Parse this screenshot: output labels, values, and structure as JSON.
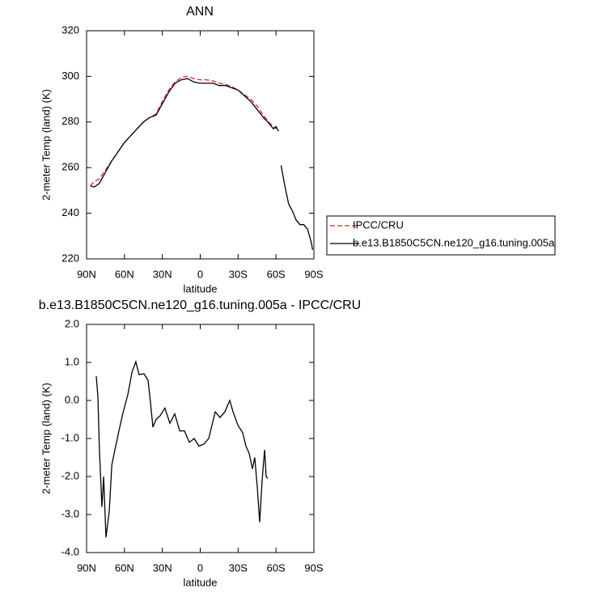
{
  "chart_data": [
    {
      "type": "line",
      "title": "ANN",
      "x_label": "latitude",
      "y_label": "2-meter Temp (land) (K)",
      "x": [
        87,
        84,
        80,
        75,
        70,
        65,
        60,
        55,
        50,
        45,
        40,
        35,
        30,
        25,
        20,
        15,
        10,
        5,
        0,
        -5,
        -10,
        -15,
        -20,
        -25,
        -30,
        -35,
        -40,
        -45,
        -50,
        -55,
        -58,
        -60,
        -62,
        -63,
        -64,
        -67,
        -70,
        -73,
        -76,
        -79,
        -82,
        -85,
        -88,
        -89
      ],
      "series": [
        {
          "name": "IPCC/CRU",
          "color": "#e8212b",
          "dashed": true,
          "values": [
            252,
            254,
            255,
            259,
            263,
            267,
            271,
            274,
            277,
            280,
            282,
            283.5,
            289,
            294,
            297.5,
            299.5,
            300,
            299,
            298.5,
            298.5,
            298,
            297,
            296.5,
            295.5,
            294,
            292,
            290,
            287,
            283,
            279.5,
            278,
            277,
            null,
            null,
            null,
            null,
            null,
            null,
            null,
            null,
            null,
            null,
            null,
            null
          ]
        },
        {
          "name": "b.e13.B1850C5CN.ne120_g16.tuning.005a",
          "color": "#000000",
          "dashed": false,
          "values": [
            252,
            251.5,
            253,
            258,
            263,
            267,
            271,
            274,
            277,
            280,
            282,
            283,
            288,
            293,
            297,
            298.5,
            299,
            297.5,
            297,
            297,
            297,
            296,
            296,
            295,
            294,
            291.5,
            289,
            285.5,
            282,
            279,
            277,
            278,
            276,
            null,
            261,
            252,
            244,
            241,
            237,
            235,
            235,
            233,
            227,
            224
          ]
        }
      ],
      "xlim": [
        90,
        -90
      ],
      "xticks": [
        {
          "value": 90,
          "label": "90N"
        },
        {
          "value": 60,
          "label": "60N"
        },
        {
          "value": 30,
          "label": "30N"
        },
        0,
        {
          "value": -30,
          "label": "30S"
        },
        {
          "value": -60,
          "label": "60S"
        },
        {
          "value": -90,
          "label": "90S"
        }
      ],
      "ylim": [
        220,
        320
      ],
      "yticks": [
        220,
        240,
        260,
        280,
        300,
        320
      ]
    },
    {
      "type": "line",
      "title": "b.e13.B1850C5CN.ne120_g16.tuning.005a - IPCC/CRU",
      "x_label": "latitude",
      "y_label": "2-meter Temp (land) (K)",
      "x": [
        82.3,
        81,
        79.8,
        77.8,
        76.5,
        74.6,
        72,
        70,
        67.6,
        64.4,
        61,
        57.3,
        54,
        51,
        48.4,
        44.5,
        41.3,
        39.4,
        37.5,
        35,
        31.7,
        28,
        24,
        20.2,
        16.3,
        12.5,
        8.6,
        4.8,
        1,
        -2.9,
        -6.7,
        -9.3,
        -11.9,
        -15.7,
        -19.5,
        -23.4,
        -26,
        -29.8,
        -33.6,
        -36.2,
        -38.8,
        -41.3,
        -43.2,
        -45.2,
        -47.1,
        -49,
        -51,
        -52.2,
        -53.5
      ],
      "values": [
        0.64,
        0.1,
        -1.3,
        -2.8,
        -2.0,
        -3.6,
        -2.9,
        -1.7,
        -1.3,
        -0.8,
        -0.3,
        0.15,
        0.75,
        1.02,
        0.68,
        0.7,
        0.53,
        -0.05,
        -0.7,
        -0.5,
        -0.4,
        -0.2,
        -0.6,
        -0.35,
        -0.8,
        -0.8,
        -1.1,
        -1.0,
        -1.2,
        -1.15,
        -1.0,
        -0.65,
        -0.3,
        -0.45,
        -0.3,
        0,
        -0.3,
        -0.65,
        -0.85,
        -1.2,
        -1.4,
        -1.8,
        -1.5,
        -2.3,
        -3.2,
        -2.1,
        -1.3,
        -2.0,
        -2.05
      ],
      "color": "#000000",
      "xlim": [
        90,
        -90
      ],
      "xticks": [
        {
          "value": 90,
          "label": "90N"
        },
        {
          "value": 60,
          "label": "60N"
        },
        {
          "value": 30,
          "label": "30N"
        },
        0,
        {
          "value": -30,
          "label": "30S"
        },
        {
          "value": -60,
          "label": "60S"
        },
        {
          "value": -90,
          "label": "90S"
        }
      ],
      "ylim": [
        -4,
        2
      ],
      "yticks": [
        {
          "value": -4,
          "label": "-4.0"
        },
        {
          "value": -3,
          "label": "-3.0"
        },
        {
          "value": -2,
          "label": "-2.0"
        },
        {
          "value": -1,
          "label": "-1.0"
        },
        {
          "value": 0,
          "label": "0.0"
        },
        {
          "value": 1,
          "label": "1.0"
        },
        {
          "value": 2,
          "label": "2.0"
        }
      ]
    }
  ]
}
